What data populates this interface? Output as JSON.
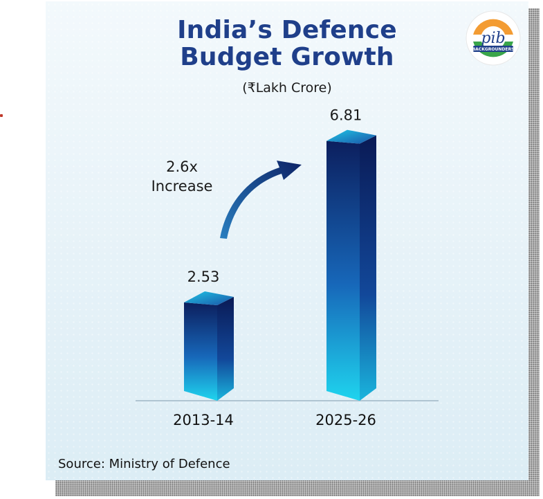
{
  "header": {
    "title_line1": "India’s Defence",
    "title_line2": "Budget Growth",
    "unit": "(₹Lakh Crore)"
  },
  "logo": {
    "text": "pib",
    "subtext": "BACKGROUNDERS",
    "icon": "pib-logo-icon"
  },
  "colors": {
    "title": "#1f3f8a",
    "bar_dark": "#0d2366",
    "bar_light": "#1ec9e6",
    "axis": "#9fb7c6"
  },
  "chart_data": {
    "type": "bar",
    "title": "India’s Defence Budget Growth",
    "subtitle": "(₹Lakh Crore)",
    "categories": [
      "2013-14",
      "2025-26"
    ],
    "values": [
      2.53,
      6.81
    ],
    "value_labels": [
      "2.53",
      "6.81"
    ],
    "ylim": [
      0,
      7.5
    ],
    "grid": false,
    "annotation": {
      "line1": "2.6x",
      "line2": "Increase"
    }
  },
  "source": "Source: Ministry of Defence"
}
